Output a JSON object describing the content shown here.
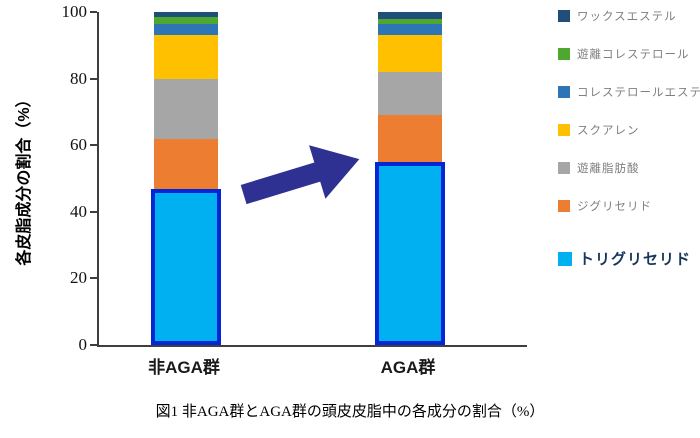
{
  "chart_data": {
    "type": "bar",
    "stacked": true,
    "percent_stacked": true,
    "ylabel": "各皮脂成分の割合（%）",
    "ylim": [
      0,
      100
    ],
    "yticks": [
      0,
      20,
      40,
      60,
      80,
      100
    ],
    "grid": false,
    "legend_position": "right",
    "categories": [
      "非AGA群",
      "AGA群"
    ],
    "series": [
      {
        "name": "トリグリセリド",
        "color": "#00b0f0",
        "values": [
          47,
          55
        ],
        "highlighted": true
      },
      {
        "name": "ジグリセリド",
        "color": "#ed7d31",
        "values": [
          15,
          14
        ]
      },
      {
        "name": "遊離脂肪酸",
        "color": "#a6a6a6",
        "values": [
          18,
          13
        ]
      },
      {
        "name": "スクアレン",
        "color": "#ffc000",
        "values": [
          13,
          11
        ]
      },
      {
        "name": "コレステロールエステル",
        "color": "#2e75b6",
        "values": [
          3.5,
          3.5
        ]
      },
      {
        "name": "遊離コレステロール",
        "color": "#4ea72e",
        "values": [
          2,
          1.5
        ]
      },
      {
        "name": "ワックスエステル",
        "color": "#1f4e79",
        "values": [
          1.5,
          2
        ]
      }
    ],
    "legend_order_top_to_bottom": [
      "ワックスエステル",
      "遊離コレステロール",
      "コレステロールエステル",
      "スクアレン",
      "遊離脂肪酸",
      "ジグリセリド",
      "トリグリセリド"
    ],
    "highlight_border_color": "#0026d8",
    "arrow_color": "#2e3192",
    "annotation": "非AGA群からAGA群へのトリグリセリド増加を示す矢印"
  },
  "caption": "図1 非AGA群とAGA群の頭皮皮脂中の各成分の割合（%）"
}
